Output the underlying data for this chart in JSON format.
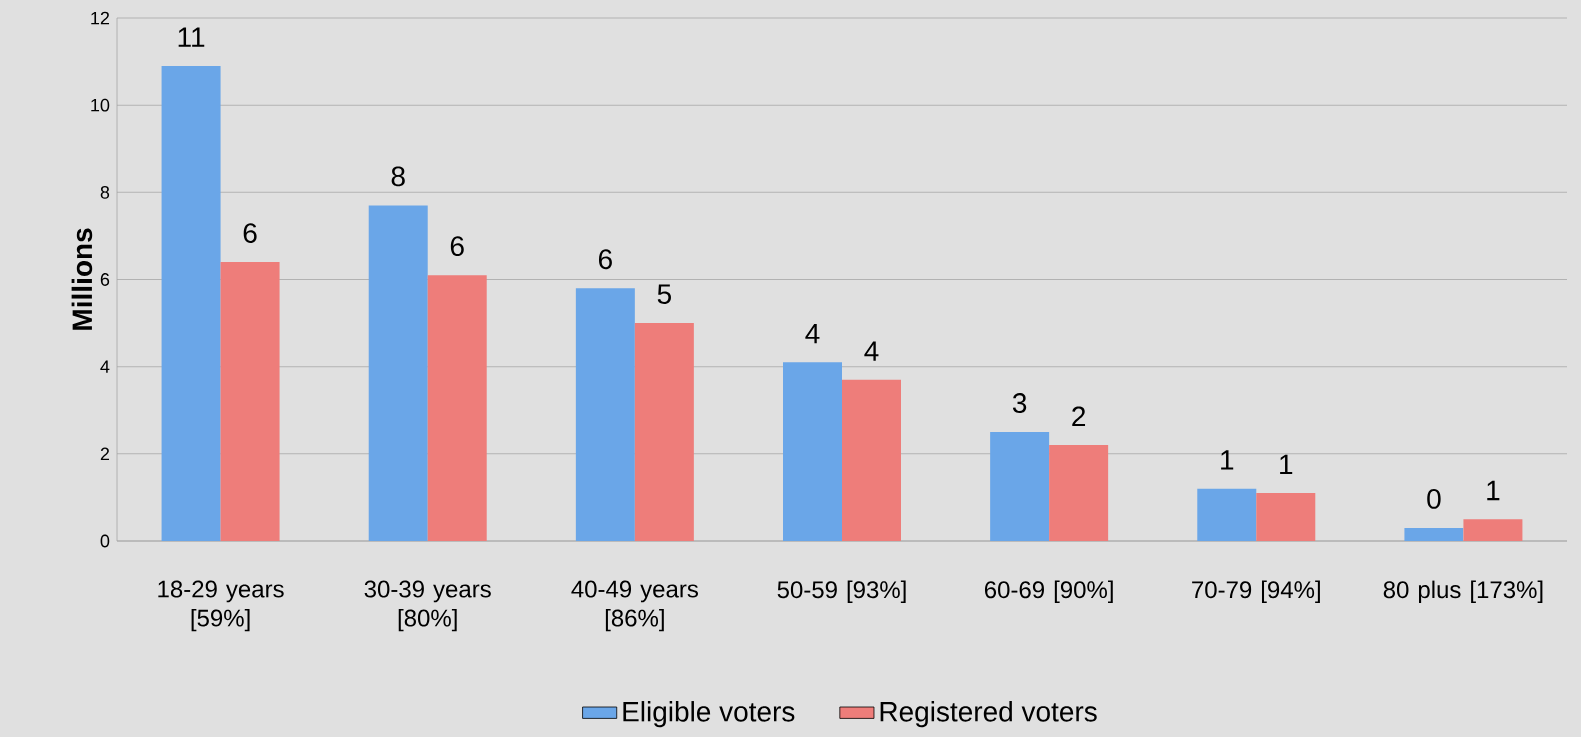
{
  "chart_data": {
    "type": "bar",
    "ylabel": "Millions",
    "categories": [
      "18-29 years [59%]",
      "30-39 years [80%]",
      "40-49 years [86%]",
      "50-59 [93%]",
      "60-69 [90%]",
      "70-79 [94%]",
      "80 plus [173%]"
    ],
    "series": [
      {
        "name": "Eligible voters",
        "color": "#6aa6e8",
        "values": [
          10.9,
          7.7,
          5.8,
          4.1,
          2.5,
          1.2,
          0.3
        ],
        "value_labels": [
          "11",
          "8",
          "6",
          "4",
          "3",
          "1",
          "0"
        ]
      },
      {
        "name": "Registered voters",
        "color": "#ee7d7a",
        "values": [
          6.4,
          6.1,
          5.0,
          3.7,
          2.2,
          1.1,
          0.5
        ],
        "value_labels": [
          "6",
          "6",
          "5",
          "4",
          "2",
          "1",
          "1"
        ]
      }
    ],
    "ylim": [
      0,
      12
    ],
    "yticks": [
      0,
      2,
      4,
      6,
      8,
      10,
      12
    ],
    "grid": "y",
    "legend": "bottom"
  }
}
